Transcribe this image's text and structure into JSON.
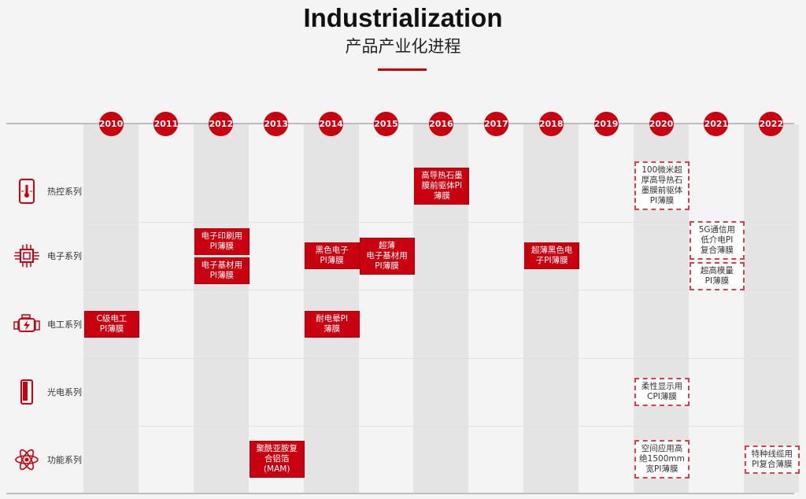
{
  "header": {
    "title": "Industrialization",
    "subtitle": "产品产业化进程"
  },
  "colors": {
    "accent": "#c8000f",
    "shade": "#e4e4e4",
    "background": "#f4f4f4"
  },
  "years": [
    "2010",
    "2011",
    "2012",
    "2013",
    "2014",
    "2015",
    "2016",
    "2017",
    "2018",
    "2019",
    "2020",
    "2021",
    "2022"
  ],
  "categories": [
    {
      "label": "热控系列",
      "icon": "thermometer-phone-icon"
    },
    {
      "label": "电子系列",
      "icon": "chip-icon"
    },
    {
      "label": "电工系列",
      "icon": "engine-icon"
    },
    {
      "label": "光电系列",
      "icon": "display-device-icon"
    },
    {
      "label": "功能系列",
      "icon": "atom-icon"
    }
  ],
  "items": [
    {
      "row": 0,
      "year": "2016",
      "style": "solid",
      "text": "高导热石墨\n膜前驱体PI\n薄膜"
    },
    {
      "row": 0,
      "year": "2020",
      "style": "dashed",
      "text": "100微米超\n厚高导热石\n墨膜前驱体\nPI薄膜"
    },
    {
      "row": 1,
      "year": "2012",
      "style": "solid",
      "text": "电子印刷用\nPI薄膜"
    },
    {
      "row": 1,
      "year": "2012",
      "style": "solid",
      "text": "电子基材用\nPI薄膜"
    },
    {
      "row": 1,
      "year": "2014",
      "style": "solid",
      "text": "黑色电子\nPI薄膜"
    },
    {
      "row": 1,
      "year": "2015",
      "style": "solid",
      "text": "超薄\n电子基材用\nPI薄膜"
    },
    {
      "row": 1,
      "year": "2018",
      "style": "solid",
      "text": "超薄黑色电\n子PI薄膜"
    },
    {
      "row": 1,
      "year": "2021",
      "style": "dashed",
      "text": "5G通信用\n低介电PI\n复合薄膜"
    },
    {
      "row": 1,
      "year": "2021",
      "style": "dashed",
      "text": "超高模量\nPI薄膜"
    },
    {
      "row": 2,
      "year": "2010",
      "style": "solid",
      "text": "C级电工\nPI薄膜"
    },
    {
      "row": 2,
      "year": "2014",
      "style": "solid",
      "text": "耐电晕PI\n薄膜"
    },
    {
      "row": 3,
      "year": "2020",
      "style": "dashed",
      "text": "柔性显示用\nCPI薄膜"
    },
    {
      "row": 4,
      "year": "2013",
      "style": "solid",
      "text": "聚酰亚胺复\n合铝箔\n(MAM)"
    },
    {
      "row": 4,
      "year": "2020",
      "style": "dashed",
      "text": "空间应用高\n绝1500mm\n宽PI薄膜"
    },
    {
      "row": 4,
      "year": "2022",
      "style": "dashed",
      "text": "特种线缆用\nPI复合薄膜"
    }
  ]
}
